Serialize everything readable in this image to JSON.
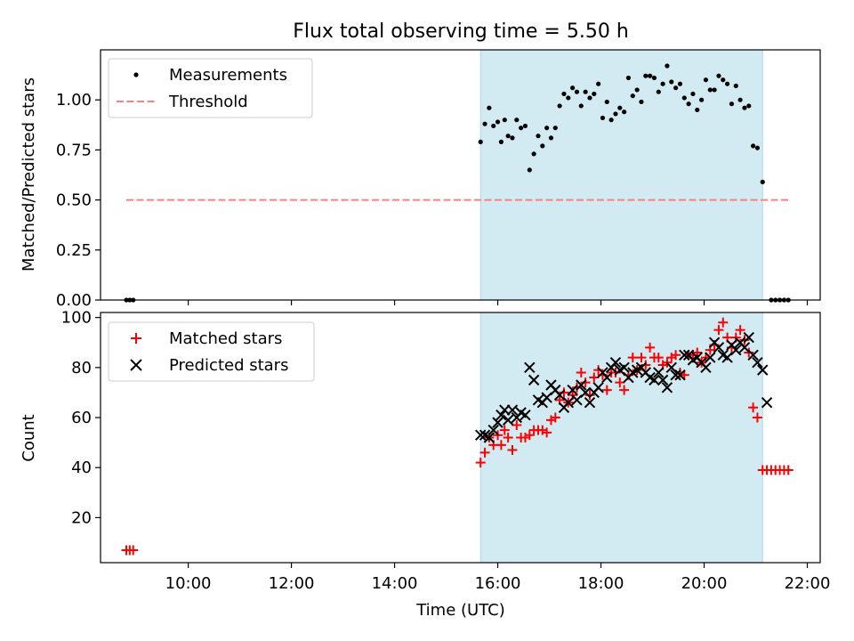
{
  "title": "Flux total observing time = 5.50 h",
  "colors": {
    "observing_span": "#add8e6",
    "measurement": "#000000",
    "threshold": "#ff7f7f",
    "matched": "#ff0000",
    "predicted": "#000000"
  },
  "chart_data": [
    {
      "type": "scatter",
      "ylabel": "Matched/Predicted stars",
      "ylim": [
        0,
        1.25
      ],
      "yticks": [
        0,
        0.25,
        0.5,
        0.75,
        1.0
      ],
      "ytick_labels": [
        "0.00",
        "0.25",
        "0.50",
        "0.75",
        "1.00"
      ],
      "xlim": [
        "08:18",
        "22:15"
      ],
      "grid": false,
      "legend": "top-left",
      "observing_span": [
        "15:40",
        "21:08"
      ],
      "threshold": {
        "name": "Threshold",
        "value": 0.5,
        "x_range": [
          "08:48",
          "21:40"
        ]
      },
      "series": [
        {
          "name": "Measurements",
          "marker": "dot",
          "points": [
            [
              "08:48",
              0
            ],
            [
              "08:52",
              0
            ],
            [
              "08:56",
              0
            ],
            [
              "15:40",
              0.79
            ],
            [
              "15:45",
              0.88
            ],
            [
              "15:50",
              0.96
            ],
            [
              "15:55",
              0.87
            ],
            [
              "16:00",
              0.89
            ],
            [
              "16:04",
              0.79
            ],
            [
              "16:08",
              0.9
            ],
            [
              "16:12",
              0.82
            ],
            [
              "16:17",
              0.81
            ],
            [
              "16:22",
              0.9
            ],
            [
              "16:27",
              0.86
            ],
            [
              "16:32",
              0.87
            ],
            [
              "16:37",
              0.65
            ],
            [
              "16:42",
              0.73
            ],
            [
              "16:47",
              0.82
            ],
            [
              "16:52",
              0.77
            ],
            [
              "16:57",
              0.86
            ],
            [
              "17:02",
              0.81
            ],
            [
              "17:07",
              0.86
            ],
            [
              "17:12",
              0.97
            ],
            [
              "17:17",
              1.03
            ],
            [
              "17:22",
              1.01
            ],
            [
              "17:27",
              1.06
            ],
            [
              "17:32",
              1.04
            ],
            [
              "17:37",
              0.97
            ],
            [
              "17:42",
              1.04
            ],
            [
              "17:47",
              1.01
            ],
            [
              "17:52",
              1.03
            ],
            [
              "17:57",
              1.08
            ],
            [
              "18:02",
              0.91
            ],
            [
              "18:07",
              0.99
            ],
            [
              "18:12",
              0.9
            ],
            [
              "18:17",
              0.93
            ],
            [
              "18:22",
              0.96
            ],
            [
              "18:27",
              0.94
            ],
            [
              "18:32",
              1.11
            ],
            [
              "18:37",
              1.02
            ],
            [
              "18:42",
              1.05
            ],
            [
              "18:47",
              0.99
            ],
            [
              "18:52",
              1.12
            ],
            [
              "18:57",
              1.12
            ],
            [
              "19:02",
              1.11
            ],
            [
              "19:07",
              1.04
            ],
            [
              "19:12",
              1.08
            ],
            [
              "19:17",
              1.17
            ],
            [
              "19:22",
              1.09
            ],
            [
              "19:27",
              1.06
            ],
            [
              "19:32",
              1.08
            ],
            [
              "19:37",
              1.01
            ],
            [
              "19:42",
              0.98
            ],
            [
              "19:47",
              1.03
            ],
            [
              "19:52",
              0.95
            ],
            [
              "19:57",
              1.0
            ],
            [
              "20:02",
              1.1
            ],
            [
              "20:07",
              1.05
            ],
            [
              "20:12",
              1.05
            ],
            [
              "20:17",
              1.12
            ],
            [
              "20:22",
              1.1
            ],
            [
              "20:27",
              1.08
            ],
            [
              "20:32",
              0.98
            ],
            [
              "20:37",
              1.07
            ],
            [
              "20:42",
              1.0
            ],
            [
              "20:47",
              0.96
            ],
            [
              "20:52",
              0.97
            ],
            [
              "20:57",
              0.77
            ],
            [
              "21:02",
              0.76
            ],
            [
              "21:08",
              0.59
            ],
            [
              "21:18",
              0
            ],
            [
              "21:23",
              0
            ],
            [
              "21:28",
              0
            ],
            [
              "21:33",
              0
            ],
            [
              "21:38",
              0
            ]
          ]
        }
      ]
    },
    {
      "type": "scatter",
      "xlabel": "Time (UTC)",
      "ylabel": "Count",
      "ylim": [
        2,
        102
      ],
      "yticks": [
        20,
        40,
        60,
        80,
        100
      ],
      "xlim": [
        "08:18",
        "22:15"
      ],
      "xticks": [
        "10:00",
        "12:00",
        "14:00",
        "16:00",
        "18:00",
        "20:00",
        "22:00"
      ],
      "grid": false,
      "legend": "top-left",
      "observing_span": [
        "15:40",
        "21:08"
      ],
      "series": [
        {
          "name": "Matched stars",
          "marker": "plus",
          "points": [
            [
              "08:48",
              7
            ],
            [
              "08:52",
              7
            ],
            [
              "08:56",
              7
            ],
            [
              "15:40",
              42
            ],
            [
              "15:45",
              46
            ],
            [
              "15:50",
              52
            ],
            [
              "15:55",
              49
            ],
            [
              "16:00",
              53
            ],
            [
              "16:04",
              49
            ],
            [
              "16:08",
              55
            ],
            [
              "16:12",
              52
            ],
            [
              "16:17",
              47
            ],
            [
              "16:22",
              57
            ],
            [
              "16:27",
              52
            ],
            [
              "16:32",
              52
            ],
            [
              "16:37",
              53
            ],
            [
              "16:42",
              55
            ],
            [
              "16:47",
              55
            ],
            [
              "16:52",
              55
            ],
            [
              "16:57",
              54
            ],
            [
              "17:02",
              59
            ],
            [
              "17:07",
              60
            ],
            [
              "17:12",
              67
            ],
            [
              "17:17",
              70
            ],
            [
              "17:22",
              66
            ],
            [
              "17:27",
              69
            ],
            [
              "17:32",
              72
            ],
            [
              "17:37",
              78
            ],
            [
              "17:42",
              74
            ],
            [
              "17:47",
              69
            ],
            [
              "17:52",
              76
            ],
            [
              "17:57",
              79
            ],
            [
              "18:02",
              77
            ],
            [
              "18:07",
              71
            ],
            [
              "18:12",
              78
            ],
            [
              "18:17",
              78
            ],
            [
              "18:22",
              74
            ],
            [
              "18:27",
              71
            ],
            [
              "18:32",
              77
            ],
            [
              "18:37",
              84
            ],
            [
              "18:42",
              79
            ],
            [
              "18:47",
              84
            ],
            [
              "18:52",
              81
            ],
            [
              "18:57",
              88
            ],
            [
              "19:02",
              84
            ],
            [
              "19:07",
              84
            ],
            [
              "19:12",
              81
            ],
            [
              "19:17",
              82
            ],
            [
              "19:22",
              84
            ],
            [
              "19:27",
              85
            ],
            [
              "19:32",
              78
            ],
            [
              "19:37",
              77
            ],
            [
              "19:42",
              85
            ],
            [
              "19:47",
              85
            ],
            [
              "19:52",
              86
            ],
            [
              "19:57",
              82
            ],
            [
              "20:02",
              84
            ],
            [
              "20:07",
              87
            ],
            [
              "20:12",
              89
            ],
            [
              "20:17",
              95
            ],
            [
              "20:22",
              98
            ],
            [
              "20:27",
              92
            ],
            [
              "20:32",
              88
            ],
            [
              "20:37",
              92
            ],
            [
              "20:42",
              95
            ],
            [
              "20:47",
              91
            ],
            [
              "20:52",
              86
            ],
            [
              "20:57",
              64
            ],
            [
              "21:02",
              60
            ],
            [
              "21:08",
              39
            ],
            [
              "21:13",
              39
            ],
            [
              "21:18",
              39
            ],
            [
              "21:23",
              39
            ],
            [
              "21:28",
              39
            ],
            [
              "21:33",
              39
            ],
            [
              "21:38",
              39
            ]
          ]
        },
        {
          "name": "Predicted stars",
          "marker": "x",
          "points": [
            [
              "15:40",
              53
            ],
            [
              "15:45",
              53
            ],
            [
              "15:50",
              52
            ],
            [
              "15:55",
              55
            ],
            [
              "16:00",
              58
            ],
            [
              "16:04",
              61
            ],
            [
              "16:08",
              63
            ],
            [
              "16:12",
              59
            ],
            [
              "16:17",
              63
            ],
            [
              "16:22",
              60
            ],
            [
              "16:27",
              62
            ],
            [
              "16:32",
              61
            ],
            [
              "16:37",
              80
            ],
            [
              "16:42",
              75
            ],
            [
              "16:47",
              67
            ],
            [
              "16:52",
              66
            ],
            [
              "16:57",
              68
            ],
            [
              "17:02",
              73
            ],
            [
              "17:07",
              71
            ],
            [
              "17:12",
              69
            ],
            [
              "17:17",
              64
            ],
            [
              "17:22",
              66
            ],
            [
              "17:27",
              71
            ],
            [
              "17:32",
              67
            ],
            [
              "17:37",
              73
            ],
            [
              "17:42",
              70
            ],
            [
              "17:47",
              66
            ],
            [
              "17:52",
              70
            ],
            [
              "17:57",
              72
            ],
            [
              "18:02",
              78
            ],
            [
              "18:07",
              76
            ],
            [
              "18:12",
              80
            ],
            [
              "18:17",
              82
            ],
            [
              "18:22",
              79
            ],
            [
              "18:27",
              80
            ],
            [
              "18:32",
              76
            ],
            [
              "18:37",
              78
            ],
            [
              "18:42",
              79
            ],
            [
              "18:47",
              80
            ],
            [
              "18:52",
              78
            ],
            [
              "18:57",
              76
            ],
            [
              "19:02",
              75
            ],
            [
              "19:07",
              78
            ],
            [
              "19:12",
              75
            ],
            [
              "19:17",
              72
            ],
            [
              "19:22",
              80
            ],
            [
              "19:27",
              77
            ],
            [
              "19:32",
              77
            ],
            [
              "19:37",
              85
            ],
            [
              "19:42",
              85
            ],
            [
              "19:47",
              83
            ],
            [
              "19:52",
              84
            ],
            [
              "19:57",
              82
            ],
            [
              "20:02",
              80
            ],
            [
              "20:07",
              84
            ],
            [
              "20:12",
              90
            ],
            [
              "20:17",
              88
            ],
            [
              "20:22",
              85
            ],
            [
              "20:27",
              84
            ],
            [
              "20:32",
              89
            ],
            [
              "20:37",
              87
            ],
            [
              "20:42",
              90
            ],
            [
              "20:47",
              88
            ],
            [
              "20:52",
              92
            ],
            [
              "20:57",
              85
            ],
            [
              "21:02",
              82
            ],
            [
              "21:08",
              79
            ],
            [
              "21:13",
              66
            ]
          ]
        }
      ]
    }
  ]
}
